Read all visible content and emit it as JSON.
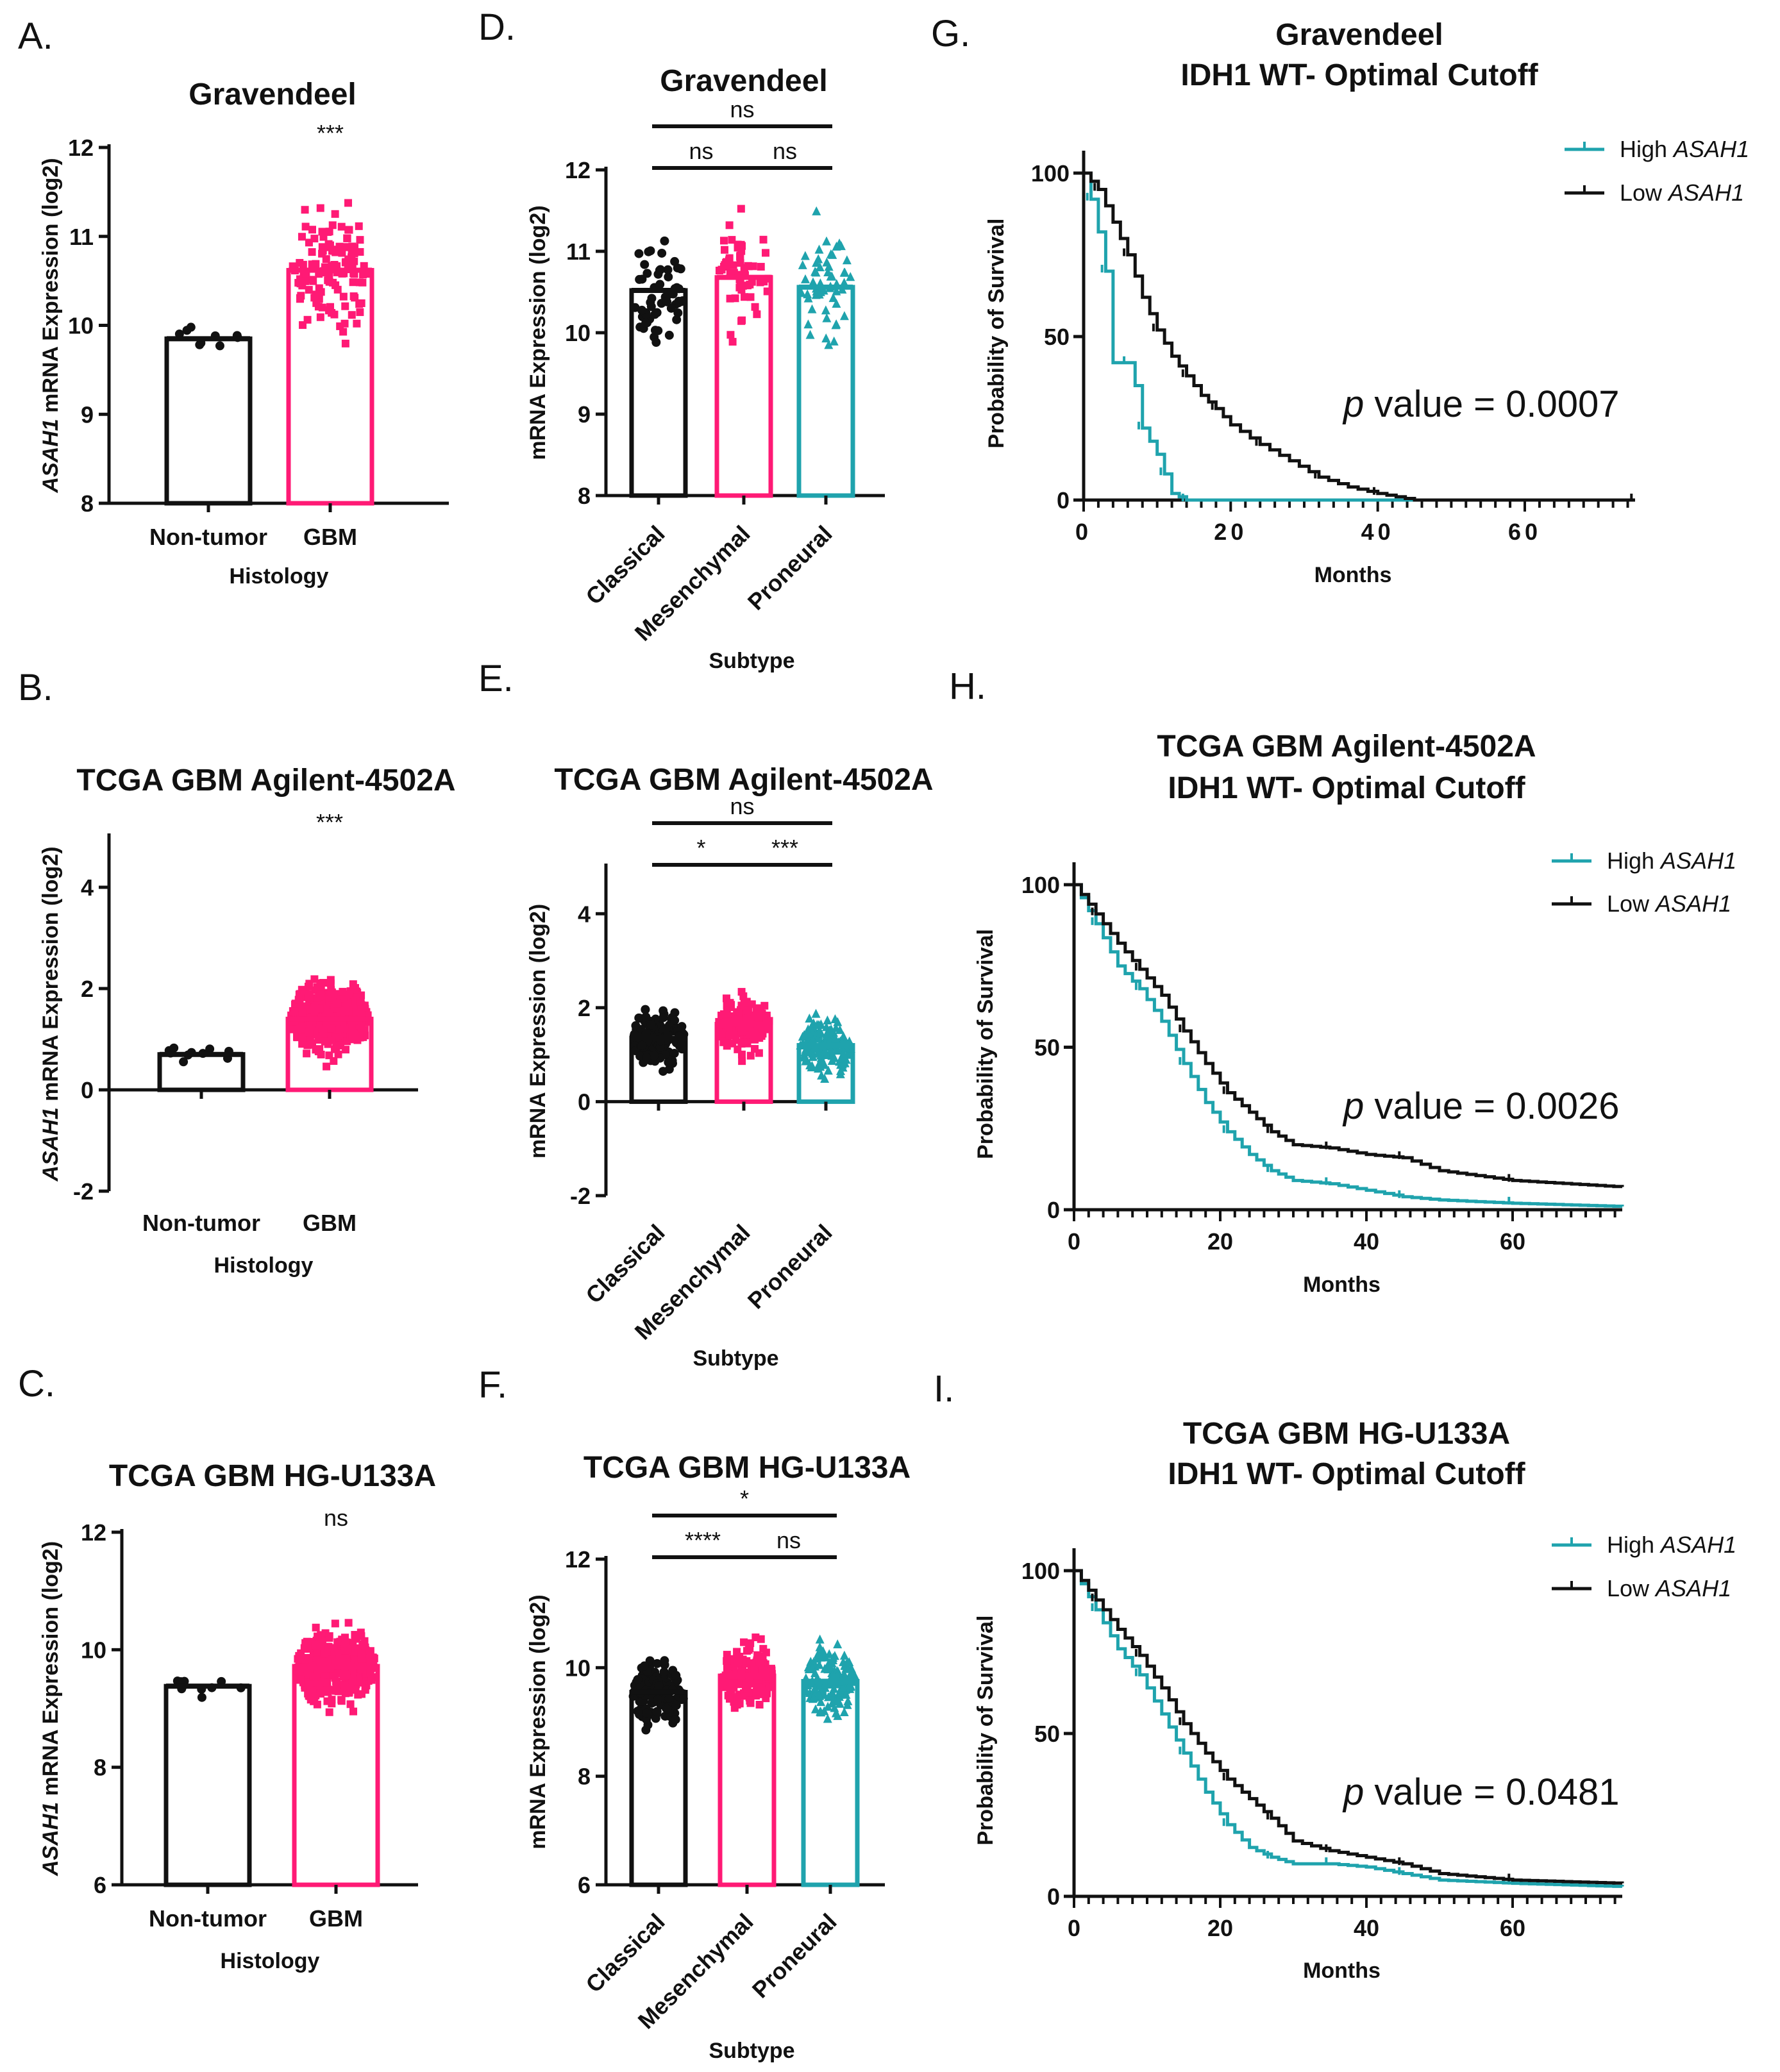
{
  "panel_labels": [
    "A.",
    "B.",
    "C.",
    "D.",
    "E.",
    "F.",
    "G.",
    "H.",
    "I."
  ],
  "colors": {
    "non_tumor": "#111111",
    "gbm": "#ff1a75",
    "classical": "#111111",
    "mesenchymal": "#ff1a75",
    "proneural": "#1fa3ad",
    "high": "#1fa3ad",
    "low": "#111111"
  },
  "chart_data": [
    {
      "panel": "A.",
      "type": "bar",
      "title": "Gravendeel",
      "ylabel": "ASAH1 mRNA Expression (log2)",
      "ylabel_italic": "ASAH1",
      "ylabel_rest": " mRNA Expression (log2)",
      "xlabel": "Histology",
      "categories": [
        "Non-tumor",
        "GBM"
      ],
      "values": [
        9.85,
        10.62
      ],
      "ylim": [
        8,
        12
      ],
      "yticks": [
        8,
        9,
        10,
        11,
        12
      ],
      "annotation": "***"
    },
    {
      "panel": "B.",
      "type": "bar",
      "title": "TCGA GBM Agilent-4502A",
      "ylabel": "ASAH1 mRNA Expression (log2)",
      "ylabel_italic": "ASAH1",
      "ylabel_rest": " mRNA  Expression (log2)",
      "xlabel": "Histology",
      "categories": [
        "Non-tumor",
        "GBM"
      ],
      "values": [
        0.7,
        1.4
      ],
      "ylim": [
        -2,
        5
      ],
      "yticks": [
        -2,
        0,
        2,
        4
      ],
      "annotation": "***"
    },
    {
      "panel": "C.",
      "type": "bar",
      "title": "TCGA GBM HG-U133A",
      "ylabel": "ASAH1 mRNA Expression (log2)",
      "ylabel_italic": "ASAH1",
      "ylabel_rest": " mRNA  Expression (log2)",
      "xlabel": "Histology",
      "categories": [
        "Non-tumor",
        "GBM"
      ],
      "values": [
        9.38,
        9.72
      ],
      "ylim": [
        6,
        12
      ],
      "yticks": [
        6,
        8,
        10,
        12
      ],
      "annotation": "ns"
    },
    {
      "panel": "D.",
      "type": "bar",
      "title": "Gravendeel",
      "ylabel": "mRNA  Expression (log2)",
      "xlabel": "Subtype",
      "categories": [
        "Classical",
        "Mesenchymal",
        "Proneural"
      ],
      "values": [
        10.52,
        10.68,
        10.56
      ],
      "ylim": [
        8,
        12
      ],
      "yticks": [
        8,
        9,
        10,
        11,
        12
      ],
      "comparisons": [
        {
          "from": 0,
          "to": 2,
          "label": "ns"
        },
        {
          "from": 0,
          "to": 1,
          "label": "ns"
        },
        {
          "from": 1,
          "to": 2,
          "label": "ns"
        }
      ]
    },
    {
      "panel": "E.",
      "type": "bar",
      "title": "TCGA GBM Agilent-4502A",
      "ylabel": "mRNA  Expression (log2)",
      "xlabel": "Subtype",
      "categories": [
        "Classical",
        "Mesenchymal",
        "Proneural"
      ],
      "values": [
        1.35,
        1.65,
        1.2
      ],
      "ylim": [
        -2,
        5
      ],
      "yticks": [
        -2,
        0,
        2,
        4
      ],
      "comparisons": [
        {
          "from": 0,
          "to": 2,
          "label": "ns"
        },
        {
          "from": 0,
          "to": 1,
          "label": "*"
        },
        {
          "from": 1,
          "to": 2,
          "label": "***"
        }
      ]
    },
    {
      "panel": "F.",
      "type": "bar",
      "title": "TCGA GBM HG-U133A",
      "ylabel": "mRNA  Expression (log2)",
      "xlabel": "Subtype",
      "categories": [
        "Classical",
        "Mesenchymal",
        "Proneural"
      ],
      "values": [
        9.55,
        9.85,
        9.75
      ],
      "ylim": [
        6,
        12
      ],
      "yticks": [
        6,
        8,
        10,
        12
      ],
      "comparisons": [
        {
          "from": 0,
          "to": 2,
          "label": "*"
        },
        {
          "from": 0,
          "to": 1,
          "label": "****"
        },
        {
          "from": 1,
          "to": 2,
          "label": "ns"
        }
      ]
    },
    {
      "panel": "G.",
      "type": "line",
      "title": "Gravendeel IDH1 WT- Optimal Cutoff",
      "title_lines": [
        "Gravendeel",
        "IDH1 WT- Optimal Cutoff"
      ],
      "ylabel": "Probability of Survival",
      "xlabel": "Months",
      "xlim": [
        0,
        75
      ],
      "ylim": [
        0,
        100
      ],
      "xticks": [
        0,
        20,
        40,
        60
      ],
      "yticks": [
        0,
        50,
        100
      ],
      "p_value": "0.0007",
      "series": [
        {
          "name": "High ASAH1",
          "x": [
            0,
            1,
            2,
            3,
            4,
            6,
            7,
            8,
            10,
            11,
            12,
            14
          ],
          "y": [
            100,
            92,
            82,
            70,
            42,
            42,
            35,
            22,
            14,
            8,
            2,
            0
          ]
        },
        {
          "name": "Low ASAH1",
          "x": [
            0,
            2,
            4,
            6,
            8,
            10,
            12,
            14,
            16,
            18,
            20,
            24,
            28,
            32,
            36,
            40,
            45,
            75
          ],
          "y": [
            100,
            95,
            85,
            75,
            62,
            52,
            44,
            38,
            32,
            28,
            23,
            17,
            12,
            7,
            4,
            2,
            0,
            0
          ]
        }
      ]
    },
    {
      "panel": "H.",
      "type": "line",
      "title": "TCGA GBM Agilent-4502A IDH1 WT- Optimal Cutoff",
      "title_lines": [
        "TCGA GBM Agilent-4502A",
        "IDH1 WT- Optimal Cutoff"
      ],
      "ylabel": "Probability of Survival",
      "xlabel": "Months",
      "xlim": [
        0,
        75
      ],
      "ylim": [
        0,
        100
      ],
      "xticks": [
        0,
        20,
        40,
        60
      ],
      "yticks": [
        0,
        50,
        100
      ],
      "p_value": "0.0026",
      "series": [
        {
          "name": "High ASAH1",
          "x": [
            0,
            3,
            6,
            9,
            12,
            15,
            18,
            21,
            24,
            27,
            30,
            35,
            40,
            45,
            50,
            60,
            75
          ],
          "y": [
            100,
            88,
            75,
            68,
            58,
            45,
            33,
            24,
            17,
            12,
            9,
            8,
            6,
            4,
            3,
            2,
            1
          ]
        },
        {
          "name": "Low ASAH1",
          "x": [
            0,
            3,
            6,
            9,
            12,
            15,
            18,
            21,
            24,
            27,
            30,
            35,
            40,
            45,
            50,
            60,
            75
          ],
          "y": [
            100,
            91,
            82,
            74,
            66,
            55,
            45,
            36,
            30,
            24,
            20,
            19,
            17,
            16,
            12,
            9,
            7
          ]
        }
      ]
    },
    {
      "panel": "I.",
      "type": "line",
      "title": "TCGA GBM HG-U133A IDH1 WT- Optimal Cutoff",
      "title_lines": [
        "TCGA GBM HG-U133A",
        "IDH1 WT- Optimal Cutoff"
      ],
      "ylabel": "Probability of Survival",
      "xlabel": "Months",
      "xlim": [
        0,
        75
      ],
      "ylim": [
        0,
        100
      ],
      "xticks": [
        0,
        20,
        40,
        60
      ],
      "yticks": [
        0,
        50,
        100
      ],
      "p_value": "0.0481",
      "series": [
        {
          "name": "High ASAH1",
          "x": [
            0,
            3,
            6,
            9,
            12,
            15,
            18,
            21,
            24,
            27,
            30,
            35,
            40,
            45,
            50,
            60,
            75
          ],
          "y": [
            100,
            88,
            76,
            68,
            56,
            44,
            32,
            22,
            15,
            12,
            10,
            10,
            9,
            7,
            5,
            4,
            3
          ]
        },
        {
          "name": "Low ASAH1",
          "x": [
            0,
            3,
            6,
            9,
            12,
            15,
            18,
            21,
            24,
            27,
            30,
            35,
            40,
            45,
            50,
            60,
            75
          ],
          "y": [
            100,
            91,
            82,
            74,
            64,
            53,
            44,
            36,
            30,
            24,
            17,
            14,
            12,
            10,
            7,
            5,
            4
          ]
        }
      ]
    }
  ],
  "legend": {
    "high_italic": "ASAH1",
    "low_italic": "ASAH1",
    "high_prefix": "High ",
    "low_prefix": "Low "
  },
  "pvalue_prefix_italic": "p",
  "pvalue_prefix_rest": " value = "
}
